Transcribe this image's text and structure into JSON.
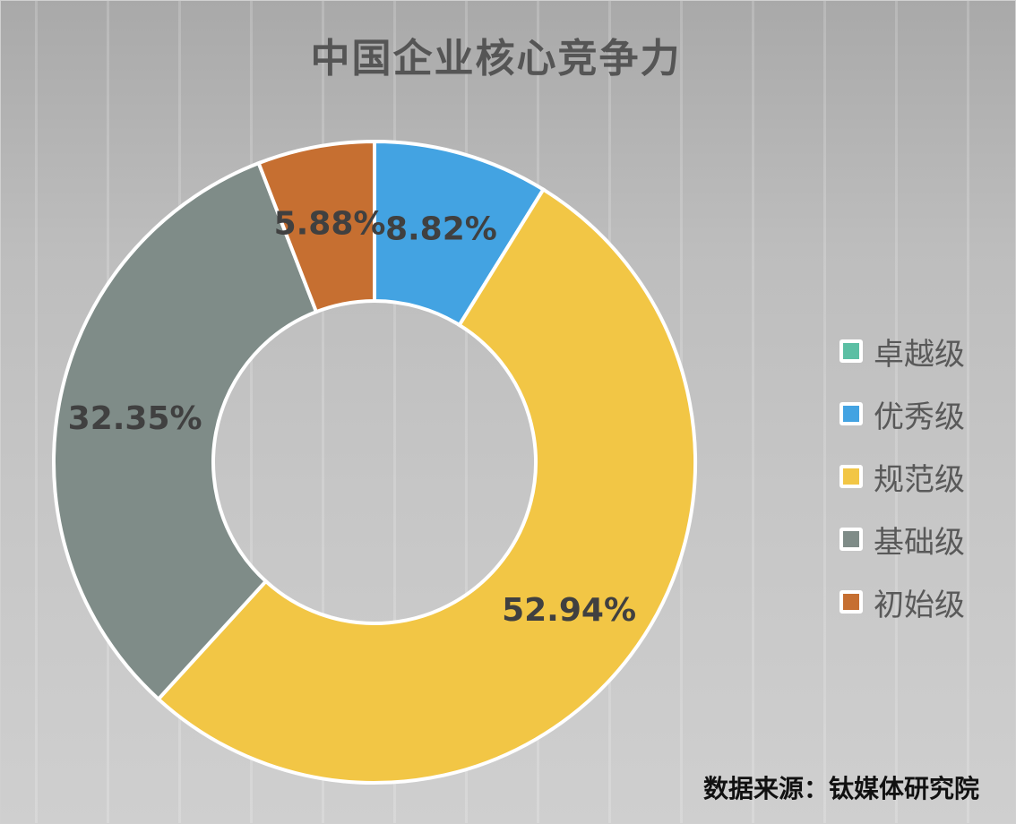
{
  "chart_data": {
    "type": "pie",
    "variant": "donut",
    "title": "中国企业核心竞争力",
    "categories": [
      "卓越级",
      "优秀级",
      "规范级",
      "基础级",
      "初始级"
    ],
    "values": [
      0,
      8.82,
      52.94,
      32.35,
      5.88
    ],
    "data_labels": [
      "",
      "8.82%",
      "52.94%",
      "32.35%",
      "5.88%"
    ],
    "colors": [
      "#5bbfa4",
      "#43a3e2",
      "#f2c645",
      "#7f8c88",
      "#c66f31"
    ],
    "legend_position": "right",
    "source": "数据来源：钛媒体研究院"
  }
}
